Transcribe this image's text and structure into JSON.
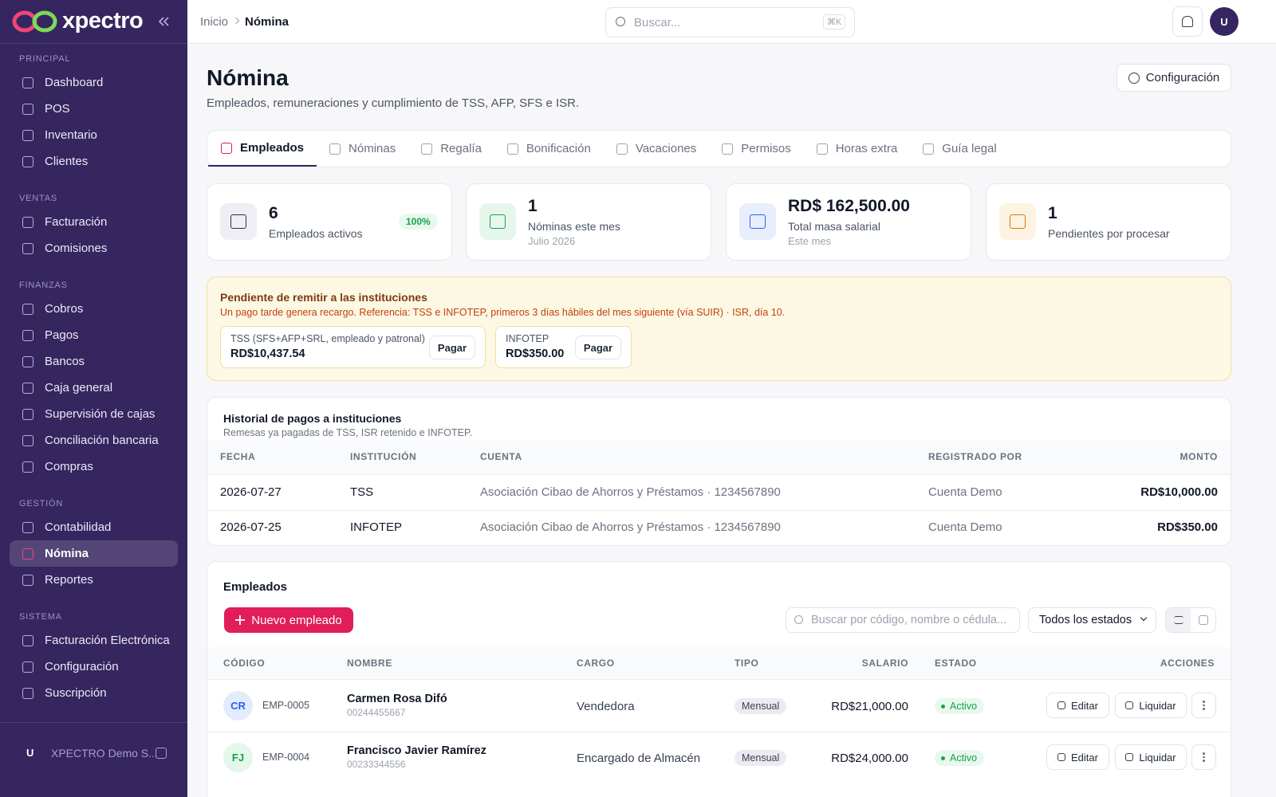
{
  "sidebar": {
    "brand": "xpectro",
    "sections": [
      {
        "title": "PRINCIPAL",
        "items": [
          {
            "label": "Dashboard"
          },
          {
            "label": "POS"
          },
          {
            "label": "Inventario"
          },
          {
            "label": "Clientes"
          }
        ]
      },
      {
        "title": "VENTAS",
        "items": [
          {
            "label": "Facturación"
          },
          {
            "label": "Comisiones"
          }
        ]
      },
      {
        "title": "FINANZAS",
        "items": [
          {
            "label": "Cobros"
          },
          {
            "label": "Pagos"
          },
          {
            "label": "Bancos"
          },
          {
            "label": "Caja general"
          },
          {
            "label": "Supervisión de cajas"
          },
          {
            "label": "Conciliación bancaria"
          },
          {
            "label": "Compras"
          }
        ]
      },
      {
        "title": "GESTIÓN",
        "items": [
          {
            "label": "Contabilidad"
          },
          {
            "label": "Nómina",
            "active": true
          },
          {
            "label": "Reportes"
          }
        ]
      },
      {
        "title": "SISTEMA",
        "items": [
          {
            "label": "Facturación Electrónica"
          },
          {
            "label": "Configuración"
          },
          {
            "label": "Suscripción"
          }
        ]
      }
    ],
    "user": {
      "initial": "U",
      "name": "XPECTRO Demo S..."
    }
  },
  "topbar": {
    "breadcrumb": [
      "Inicio",
      "Nómina"
    ],
    "search_placeholder": "Buscar...",
    "shortcut": "⌘K",
    "avatar": "U"
  },
  "header": {
    "title": "Nómina",
    "subtitle": "Empleados, remuneraciones y cumplimiento de TSS, AFP, SFS e ISR.",
    "button": "Configuración"
  },
  "tabs": [
    {
      "label": "Empleados",
      "active": true
    },
    {
      "label": "Nóminas"
    },
    {
      "label": "Regalía"
    },
    {
      "label": "Bonificación"
    },
    {
      "label": "Vacaciones"
    },
    {
      "label": "Permisos"
    },
    {
      "label": "Horas extra"
    },
    {
      "label": "Guía legal"
    }
  ],
  "stats": [
    {
      "value": "6",
      "label": "Empleados activos",
      "badge": "100%"
    },
    {
      "value": "1",
      "label": "Nóminas este mes",
      "sub": "Julio 2026"
    },
    {
      "value": "RD$ 162,500.00",
      "label": "Total masa salarial",
      "sub": "Este mes"
    },
    {
      "value": "1",
      "label": "Pendientes por procesar"
    }
  ],
  "alert": {
    "title": "Pendiente de remitir a las instituciones",
    "text": "Un pago tarde genera recargo. Referencia: TSS e INFOTEP, primeros 3 días hábiles del mes siguiente (vía SUIR) · ISR, día 10.",
    "items": [
      {
        "label": "TSS (SFS+AFP+SRL, empleado y patronal)",
        "amount": "RD$10,437.54",
        "button": "Pagar"
      },
      {
        "label": "INFOTEP",
        "amount": "RD$350.00",
        "button": "Pagar"
      }
    ]
  },
  "history": {
    "title": "Historial de pagos a instituciones",
    "subtitle": "Remesas ya pagadas de TSS, ISR retenido e INFOTEP.",
    "columns": [
      "FECHA",
      "INSTITUCIÓN",
      "CUENTA",
      "REGISTRADO POR",
      "MONTO"
    ],
    "rows": [
      [
        "2026-07-27",
        "TSS",
        "Asociación Cibao de Ahorros y Préstamos · 1234567890",
        "Cuenta Demo",
        "RD$10,000.00"
      ],
      [
        "2026-07-25",
        "INFOTEP",
        "Asociación Cibao de Ahorros y Préstamos · 1234567890",
        "Cuenta Demo",
        "RD$350.00"
      ]
    ]
  },
  "employees": {
    "title": "Empleados",
    "new_button": "Nuevo empleado",
    "search_placeholder": "Buscar por código, nombre o cédula...",
    "filter": "Todos los estados",
    "columns": [
      "CÓDIGO",
      "NOMBRE",
      "CARGO",
      "TIPO",
      "SALARIO",
      "ESTADO",
      "ACCIONES"
    ],
    "actions": [
      "Editar",
      "Liquidar"
    ],
    "rows": [
      {
        "initials": "CR",
        "code": "EMP-0005",
        "name": "Carmen Rosa Difó",
        "id": "00244455667",
        "position": "Vendedora",
        "type": "Mensual",
        "salary": "RD$21,000.00",
        "status": "Activo"
      },
      {
        "initials": "FJ",
        "code": "EMP-0004",
        "name": "Francisco Javier Ramírez",
        "id": "00233344556",
        "position": "Encargado de Almacén",
        "type": "Mensual",
        "salary": "RD$24,000.00",
        "status": "Activo"
      }
    ]
  }
}
